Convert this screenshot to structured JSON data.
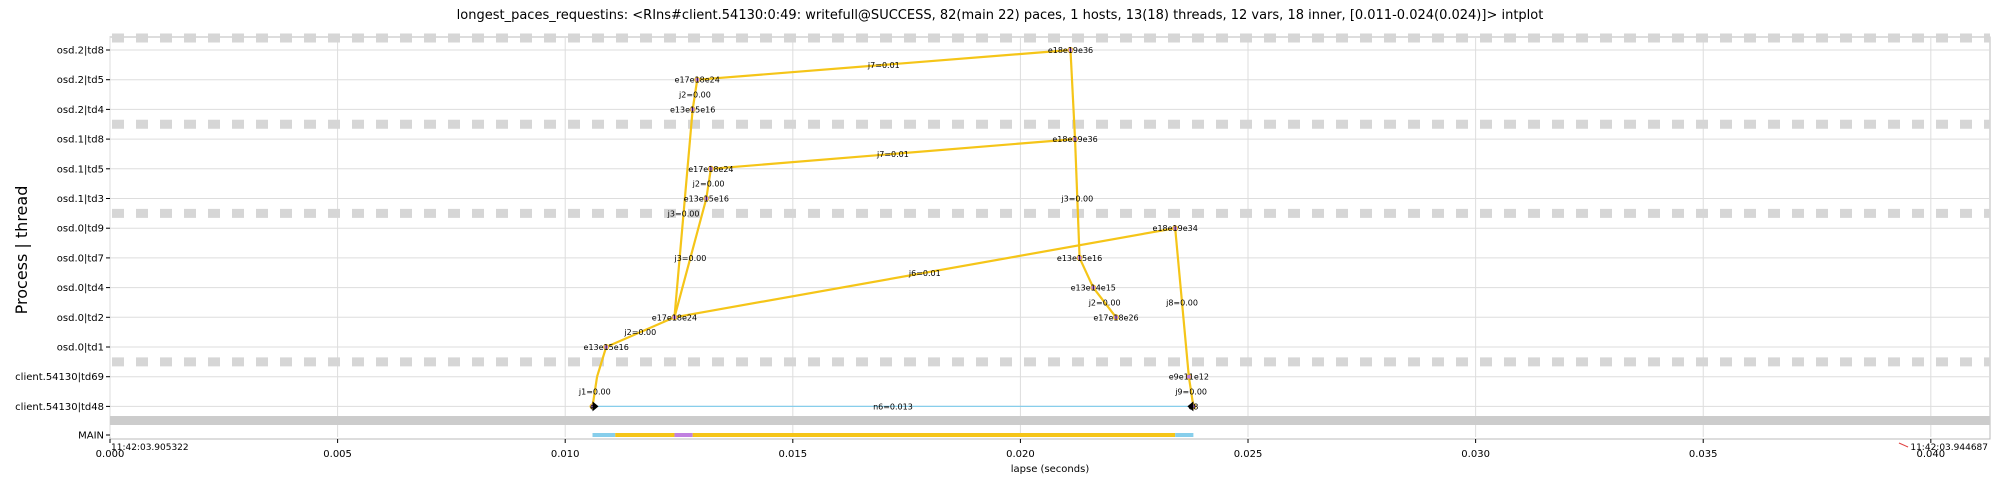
{
  "chart_data": {
    "type": "scatter",
    "title": "longest_paces_requestins: <RIns#client.54130:0:49: writefull@SUCCESS, 82(main 22) paces, 1 hosts, 13(18) threads, 12 vars, 18 inner, [0.011-0.024(0.024)]> intplot",
    "xlabel": "lapse (seconds)",
    "ylabel": "Process | thread",
    "xlim": [
      0.0,
      0.0413
    ],
    "x_ticks": [
      0.0,
      0.005,
      0.01,
      0.015,
      0.02,
      0.025,
      0.03,
      0.035,
      0.04
    ],
    "x_tick_labels": [
      "0.000",
      "0.005",
      "0.010",
      "0.015",
      "0.020",
      "0.025",
      "0.030",
      "0.035",
      "0.040"
    ],
    "start_time_label": "11:42:03.905322",
    "end_time_label": "11:42:03.944687",
    "grid": true,
    "threads": [
      "osd.2|td8",
      "osd.2|td5",
      "osd.2|td4",
      "osd.1|td8",
      "osd.1|td5",
      "osd.1|td3",
      "osd.0|td9",
      "osd.0|td7",
      "osd.0|td4",
      "osd.0|td2",
      "osd.0|td1",
      "client.54130|td69",
      "client.54130|td48",
      "MAIN"
    ],
    "separator_rows": [
      0,
      2.5,
      5.5,
      10.5
    ],
    "edges": [
      {
        "from": [
          0.0106,
          "client.54130|td48"
        ],
        "to": [
          0.0107,
          "client.54130|td69"
        ],
        "color": "#f5c518",
        "label": "j1=0.00"
      },
      {
        "from": [
          0.0107,
          "client.54130|td69"
        ],
        "to": [
          0.0109,
          "osd.0|td1"
        ],
        "color": "#f5c518"
      },
      {
        "from": [
          0.0109,
          "osd.0|td1"
        ],
        "to": [
          0.0124,
          "osd.0|td2"
        ],
        "color": "#f5c518",
        "label": "j2=0.00"
      },
      {
        "from": [
          0.0124,
          "osd.0|td2"
        ],
        "to": [
          0.0234,
          "osd.0|td9"
        ],
        "color": "#f5c518",
        "label": "j6=0.01"
      },
      {
        "from": [
          0.0124,
          "osd.0|td2"
        ],
        "to": [
          0.0128,
          "osd.2|td4"
        ],
        "color": "#f5c518",
        "label": "j3=0.00"
      },
      {
        "from": [
          0.0128,
          "osd.2|td4"
        ],
        "to": [
          0.0129,
          "osd.2|td5"
        ],
        "color": "#f5c518",
        "label": "j2=0.00"
      },
      {
        "from": [
          0.0129,
          "osd.2|td5"
        ],
        "to": [
          0.0211,
          "osd.2|td8"
        ],
        "color": "#f5c518",
        "label": "j7=0.01"
      },
      {
        "from": [
          0.0124,
          "osd.0|td2"
        ],
        "to": [
          0.0131,
          "osd.1|td3"
        ],
        "color": "#f5c518",
        "label": "j3=0.00"
      },
      {
        "from": [
          0.0131,
          "osd.1|td3"
        ],
        "to": [
          0.0132,
          "osd.1|td5"
        ],
        "color": "#f5c518",
        "label": "j2=0.00"
      },
      {
        "from": [
          0.0132,
          "osd.1|td5"
        ],
        "to": [
          0.0212,
          "osd.1|td8"
        ],
        "color": "#f5c518",
        "label": "j7=0.01"
      },
      {
        "from": [
          0.0211,
          "osd.2|td8"
        ],
        "to": [
          0.0212,
          "osd.1|td8"
        ],
        "color": "#f5c518"
      },
      {
        "from": [
          0.0212,
          "osd.1|td8"
        ],
        "to": [
          0.0213,
          "osd.0|td7"
        ],
        "color": "#f5c518",
        "label": "j3=0.00"
      },
      {
        "from": [
          0.0213,
          "osd.0|td7"
        ],
        "to": [
          0.0216,
          "osd.0|td4"
        ],
        "color": "#f5c518"
      },
      {
        "from": [
          0.0216,
          "osd.0|td4"
        ],
        "to": [
          0.0221,
          "osd.0|td2"
        ],
        "color": "#f5c518",
        "label": "j2=0.00"
      },
      {
        "from": [
          0.0234,
          "osd.0|td9"
        ],
        "to": [
          0.0237,
          "client.54130|td69"
        ],
        "color": "#f5c518",
        "label": "j8=0.00"
      },
      {
        "from": [
          0.0237,
          "client.54130|td69"
        ],
        "to": [
          0.0238,
          "client.54130|td48"
        ],
        "color": "#f5c518",
        "label": "j9=0.00"
      },
      {
        "from": [
          0.0106,
          "client.54130|td48"
        ],
        "to": [
          0.0238,
          "client.54130|td48"
        ],
        "color": "#87ceeb",
        "label": "n6=0.013"
      }
    ],
    "node_labels": [
      {
        "x": 0.0211,
        "thread": "osd.2|td8",
        "text": "e18e19e36"
      },
      {
        "x": 0.0129,
        "thread": "osd.2|td5",
        "text": "e17e18e24"
      },
      {
        "x": 0.0128,
        "thread": "osd.2|td4",
        "text": "e13e15e16"
      },
      {
        "x": 0.0212,
        "thread": "osd.1|td8",
        "text": "e18e19e36"
      },
      {
        "x": 0.0132,
        "thread": "osd.1|td5",
        "text": "e17e18e24"
      },
      {
        "x": 0.0131,
        "thread": "osd.1|td3",
        "text": "e13e15e16"
      },
      {
        "x": 0.0234,
        "thread": "osd.0|td9",
        "text": "e18e19e34"
      },
      {
        "x": 0.0213,
        "thread": "osd.0|td7",
        "text": "e13e15e16"
      },
      {
        "x": 0.0216,
        "thread": "osd.0|td4",
        "text": "e13e14e15"
      },
      {
        "x": 0.0124,
        "thread": "osd.0|td2",
        "text": "e17e18e24"
      },
      {
        "x": 0.0221,
        "thread": "osd.0|td2",
        "text": "e17e18e26"
      },
      {
        "x": 0.0109,
        "thread": "osd.0|td1",
        "text": "e13e15e16"
      },
      {
        "x": 0.0237,
        "thread": "client.54130|td69",
        "text": "e9e11e12"
      },
      {
        "x": 0.0106,
        "thread": "client.54130|td48",
        "text": "e"
      },
      {
        "x": 0.0238,
        "thread": "client.54130|td48",
        "text": "e8"
      }
    ],
    "main_segments": [
      {
        "x0": 0.0106,
        "x1": 0.0111,
        "color": "#87ceeb"
      },
      {
        "x0": 0.0111,
        "x1": 0.0124,
        "color": "#f5c518"
      },
      {
        "x0": 0.0124,
        "x1": 0.0128,
        "color": "#c080e0"
      },
      {
        "x0": 0.0128,
        "x1": 0.0234,
        "color": "#f5c518"
      },
      {
        "x0": 0.0234,
        "x1": 0.0238,
        "color": "#87ceeb"
      }
    ]
  }
}
